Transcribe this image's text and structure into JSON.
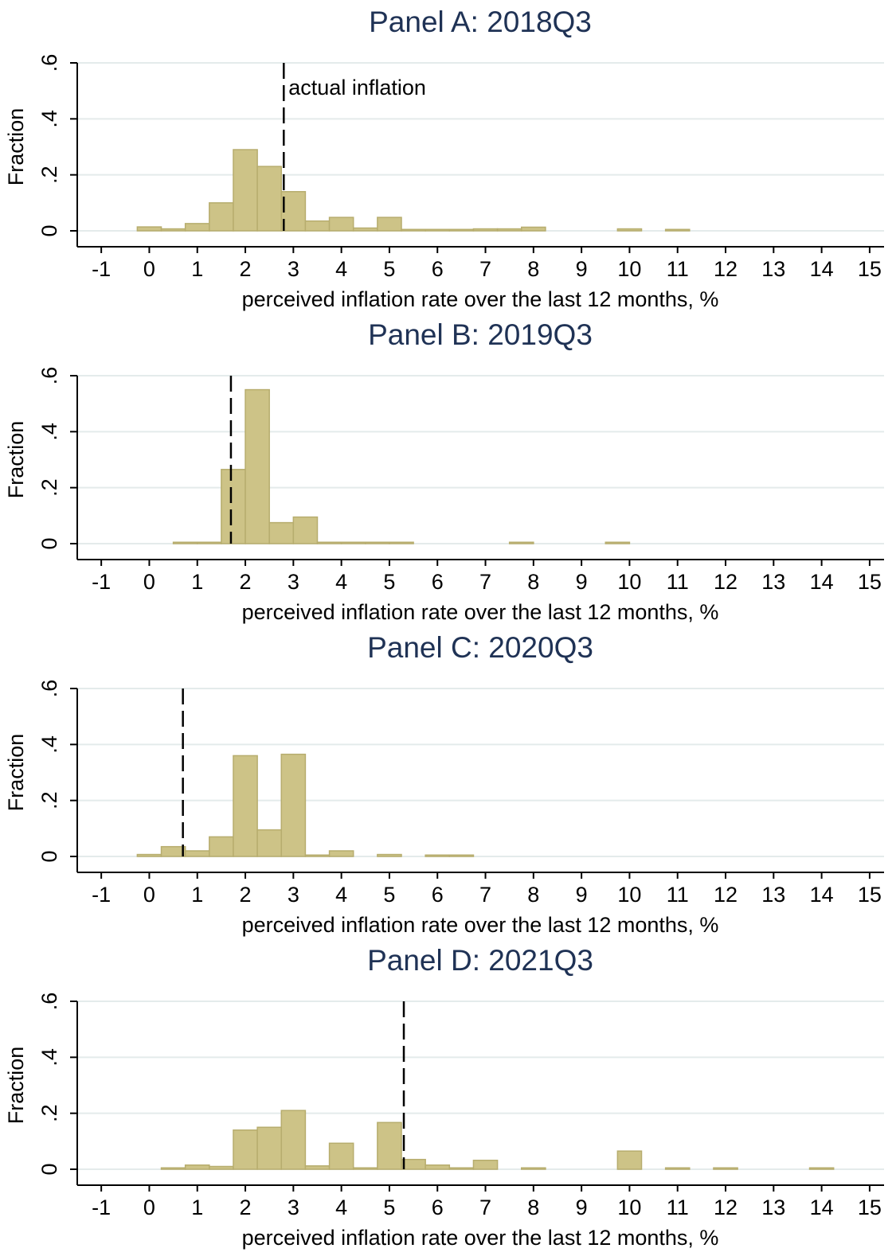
{
  "colors": {
    "bar_fill": "#cdc387",
    "bar_stroke": "#b7ad6e",
    "grid": "#e4ebeb",
    "title": "#1f3255",
    "marker": "#000000"
  },
  "chart_data": [
    {
      "type": "bar",
      "title": "Panel A: 2018Q3",
      "xlabel": "perceived inflation rate over the last 12 months, %",
      "ylabel": "Fraction",
      "xlim": [
        -1.5,
        15.3
      ],
      "ylim": [
        0,
        0.6
      ],
      "xticks": [
        -1,
        0,
        1,
        2,
        3,
        4,
        5,
        6,
        7,
        8,
        9,
        10,
        11,
        12,
        13,
        14,
        15
      ],
      "xtick_labels": [
        "-1",
        "0",
        "1",
        "2",
        "3",
        "4",
        "5",
        "6",
        "7",
        "8",
        "9",
        "10",
        "11",
        "12",
        "13",
        "14",
        "15"
      ],
      "yticks": [
        0,
        0.2,
        0.4,
        0.6
      ],
      "ytick_labels": [
        "0",
        ".2",
        ".4",
        ".6"
      ],
      "grid": true,
      "bin_width": 0.5,
      "bins": [
        {
          "x": 0.0,
          "y": 0.014
        },
        {
          "x": 0.5,
          "y": 0.007
        },
        {
          "x": 1.0,
          "y": 0.026
        },
        {
          "x": 1.5,
          "y": 0.1
        },
        {
          "x": 2.0,
          "y": 0.29
        },
        {
          "x": 2.5,
          "y": 0.23
        },
        {
          "x": 3.0,
          "y": 0.14
        },
        {
          "x": 3.5,
          "y": 0.035
        },
        {
          "x": 4.0,
          "y": 0.048
        },
        {
          "x": 4.5,
          "y": 0.01
        },
        {
          "x": 5.0,
          "y": 0.048
        },
        {
          "x": 5.5,
          "y": 0.005
        },
        {
          "x": 6.0,
          "y": 0.005
        },
        {
          "x": 6.5,
          "y": 0.005
        },
        {
          "x": 7.0,
          "y": 0.007
        },
        {
          "x": 7.5,
          "y": 0.007
        },
        {
          "x": 8.0,
          "y": 0.013
        },
        {
          "x": 10.0,
          "y": 0.007
        },
        {
          "x": 11.0,
          "y": 0.005
        }
      ],
      "actual_inflation": 2.8,
      "annotation": "actual inflation"
    },
    {
      "type": "bar",
      "title": "Panel B: 2019Q3",
      "xlabel": "perceived inflation rate over the last 12 months, %",
      "ylabel": "Fraction",
      "xlim": [
        -1.5,
        15.3
      ],
      "ylim": [
        0,
        0.6
      ],
      "xticks": [
        -1,
        0,
        1,
        2,
        3,
        4,
        5,
        6,
        7,
        8,
        9,
        10,
        11,
        12,
        13,
        14,
        15
      ],
      "xtick_labels": [
        "-1",
        "0",
        "1",
        "2",
        "3",
        "4",
        "5",
        "6",
        "7",
        "8",
        "9",
        "10",
        "11",
        "12",
        "13",
        "14",
        "15"
      ],
      "yticks": [
        0,
        0.2,
        0.4,
        0.6
      ],
      "ytick_labels": [
        "0",
        ".2",
        ".4",
        ".6"
      ],
      "grid": true,
      "bin_width": 0.5,
      "bins": [
        {
          "x": 0.75,
          "y": 0.005
        },
        {
          "x": 1.25,
          "y": 0.005
        },
        {
          "x": 1.75,
          "y": 0.265
        },
        {
          "x": 2.25,
          "y": 0.55
        },
        {
          "x": 2.75,
          "y": 0.075
        },
        {
          "x": 3.25,
          "y": 0.095
        },
        {
          "x": 3.75,
          "y": 0.005
        },
        {
          "x": 4.25,
          "y": 0.005
        },
        {
          "x": 4.75,
          "y": 0.005
        },
        {
          "x": 5.25,
          "y": 0.005
        },
        {
          "x": 7.75,
          "y": 0.005
        },
        {
          "x": 9.75,
          "y": 0.005
        }
      ],
      "actual_inflation": 1.7
    },
    {
      "type": "bar",
      "title": "Panel C: 2020Q3",
      "xlabel": "perceived inflation rate over the last 12 months, %",
      "ylabel": "Fraction",
      "xlim": [
        -1.5,
        15.3
      ],
      "ylim": [
        0,
        0.6
      ],
      "xticks": [
        -1,
        0,
        1,
        2,
        3,
        4,
        5,
        6,
        7,
        8,
        9,
        10,
        11,
        12,
        13,
        14,
        15
      ],
      "xtick_labels": [
        "-1",
        "0",
        "1",
        "2",
        "3",
        "4",
        "5",
        "6",
        "7",
        "8",
        "9",
        "10",
        "11",
        "12",
        "13",
        "14",
        "15"
      ],
      "yticks": [
        0,
        0.2,
        0.4,
        0.6
      ],
      "ytick_labels": [
        "0",
        ".2",
        ".4",
        ".6"
      ],
      "grid": true,
      "bin_width": 0.5,
      "bins": [
        {
          "x": 0.0,
          "y": 0.007
        },
        {
          "x": 0.5,
          "y": 0.035
        },
        {
          "x": 1.0,
          "y": 0.02
        },
        {
          "x": 1.5,
          "y": 0.07
        },
        {
          "x": 2.0,
          "y": 0.36
        },
        {
          "x": 2.5,
          "y": 0.095
        },
        {
          "x": 3.0,
          "y": 0.365
        },
        {
          "x": 3.5,
          "y": 0.005
        },
        {
          "x": 4.0,
          "y": 0.02
        },
        {
          "x": 5.0,
          "y": 0.007
        },
        {
          "x": 6.0,
          "y": 0.005
        },
        {
          "x": 6.5,
          "y": 0.005
        }
      ],
      "actual_inflation": 0.7
    },
    {
      "type": "bar",
      "title": "Panel D: 2021Q3",
      "xlabel": "perceived inflation rate over the last 12 months, %",
      "ylabel": "Fraction",
      "xlim": [
        -1.5,
        15.3
      ],
      "ylim": [
        0,
        0.6
      ],
      "xticks": [
        -1,
        0,
        1,
        2,
        3,
        4,
        5,
        6,
        7,
        8,
        9,
        10,
        11,
        12,
        13,
        14,
        15
      ],
      "xtick_labels": [
        "-1",
        "0",
        "1",
        "2",
        "3",
        "4",
        "5",
        "6",
        "7",
        "8",
        "9",
        "10",
        "11",
        "12",
        "13",
        "14",
        "15"
      ],
      "yticks": [
        0,
        0.2,
        0.4,
        0.6
      ],
      "ytick_labels": [
        "0",
        ".2",
        ".4",
        ".6"
      ],
      "grid": true,
      "bin_width": 0.5,
      "bins": [
        {
          "x": 0.5,
          "y": 0.005
        },
        {
          "x": 1.0,
          "y": 0.015
        },
        {
          "x": 1.5,
          "y": 0.01
        },
        {
          "x": 2.0,
          "y": 0.14
        },
        {
          "x": 2.5,
          "y": 0.15
        },
        {
          "x": 3.0,
          "y": 0.21
        },
        {
          "x": 3.5,
          "y": 0.012
        },
        {
          "x": 4.0,
          "y": 0.093
        },
        {
          "x": 4.5,
          "y": 0.005
        },
        {
          "x": 5.0,
          "y": 0.167
        },
        {
          "x": 5.5,
          "y": 0.035
        },
        {
          "x": 6.0,
          "y": 0.015
        },
        {
          "x": 6.5,
          "y": 0.005
        },
        {
          "x": 7.0,
          "y": 0.032
        },
        {
          "x": 8.0,
          "y": 0.005
        },
        {
          "x": 10.0,
          "y": 0.065
        },
        {
          "x": 11.0,
          "y": 0.005
        },
        {
          "x": 12.0,
          "y": 0.005
        },
        {
          "x": 14.0,
          "y": 0.005
        }
      ],
      "actual_inflation": 5.3
    }
  ]
}
